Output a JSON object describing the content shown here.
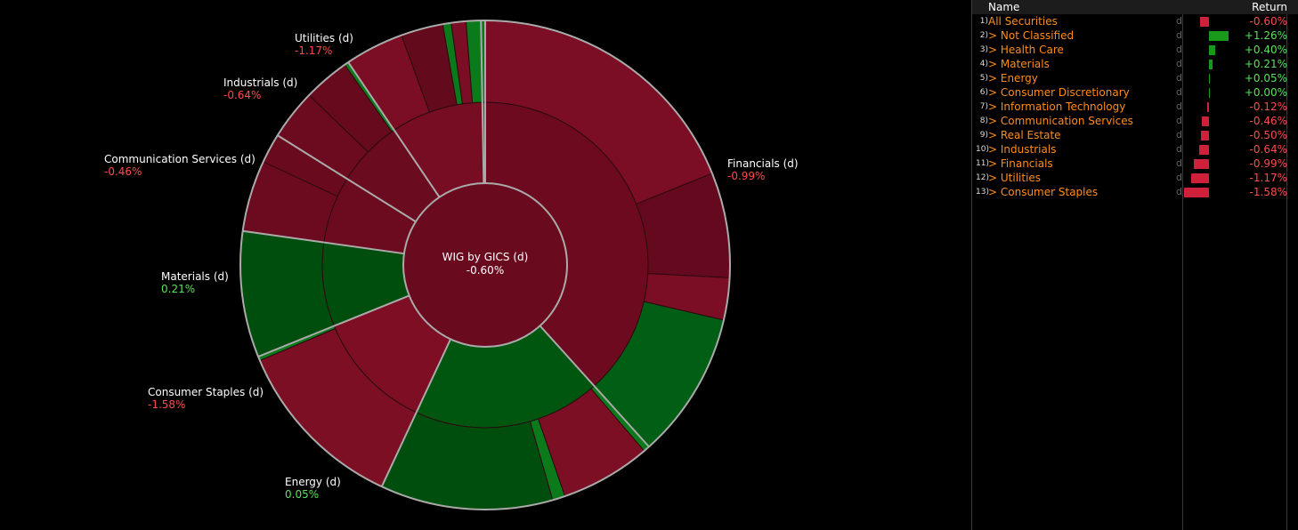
{
  "colors": {
    "negative_text": "#ff4a4a",
    "positive_text": "#5de05d",
    "bar_negative": "#d0213a",
    "bar_positive": "#1a9a1a",
    "name_text": "#ff8c1a"
  },
  "sunburst": {
    "center": {
      "title": "WIG by GICS (d)",
      "value": "-0.60%"
    },
    "labels": [
      {
        "name": "Financials (d)",
        "value": "-0.99%",
        "sign": "neg"
      },
      {
        "name": "Utilities (d)",
        "value": "-1.17%",
        "sign": "neg"
      },
      {
        "name": "Industrials (d)",
        "value": "-0.64%",
        "sign": "neg"
      },
      {
        "name": "Communication Services (d)",
        "value": "-0.46%",
        "sign": "neg"
      },
      {
        "name": "Materials (d)",
        "value": "0.21%",
        "sign": "pos"
      },
      {
        "name": "Consumer Staples (d)",
        "value": "-1.58%",
        "sign": "neg"
      },
      {
        "name": "Energy (d)",
        "value": "0.05%",
        "sign": "pos"
      }
    ]
  },
  "table": {
    "header": {
      "name": "Name",
      "return": "Return"
    },
    "rows": [
      {
        "index": "1)",
        "name": "All Securities",
        "flag": "d",
        "value": "-0.60%",
        "ret": -0.6
      },
      {
        "index": "2)",
        "name": "> Not Classified",
        "flag": "d",
        "value": "+1.26%",
        "ret": 1.26
      },
      {
        "index": "3)",
        "name": "> Health Care",
        "flag": "d",
        "value": "+0.40%",
        "ret": 0.4
      },
      {
        "index": "4)",
        "name": "> Materials",
        "flag": "d",
        "value": "+0.21%",
        "ret": 0.21
      },
      {
        "index": "5)",
        "name": "> Energy",
        "flag": "d",
        "value": "+0.05%",
        "ret": 0.05
      },
      {
        "index": "6)",
        "name": "> Consumer Discretionary",
        "flag": "d",
        "value": "+0.00%",
        "ret": 0.0
      },
      {
        "index": "7)",
        "name": "> Information Technology",
        "flag": "d",
        "value": "-0.12%",
        "ret": -0.12
      },
      {
        "index": "8)",
        "name": "> Communication Services",
        "flag": "d",
        "value": "-0.46%",
        "ret": -0.46
      },
      {
        "index": "9)",
        "name": "> Real Estate",
        "flag": "d",
        "value": "-0.50%",
        "ret": -0.5
      },
      {
        "index": "10)",
        "name": "> Industrials",
        "flag": "d",
        "value": "-0.64%",
        "ret": -0.64
      },
      {
        "index": "11)",
        "name": "> Financials",
        "flag": "d",
        "value": "-0.99%",
        "ret": -0.99
      },
      {
        "index": "12)",
        "name": "> Utilities",
        "flag": "d",
        "value": "-1.17%",
        "ret": -1.17
      },
      {
        "index": "13)",
        "name": "> Consumer Staples",
        "flag": "d",
        "value": "-1.58%",
        "ret": -1.58
      }
    ]
  }
}
